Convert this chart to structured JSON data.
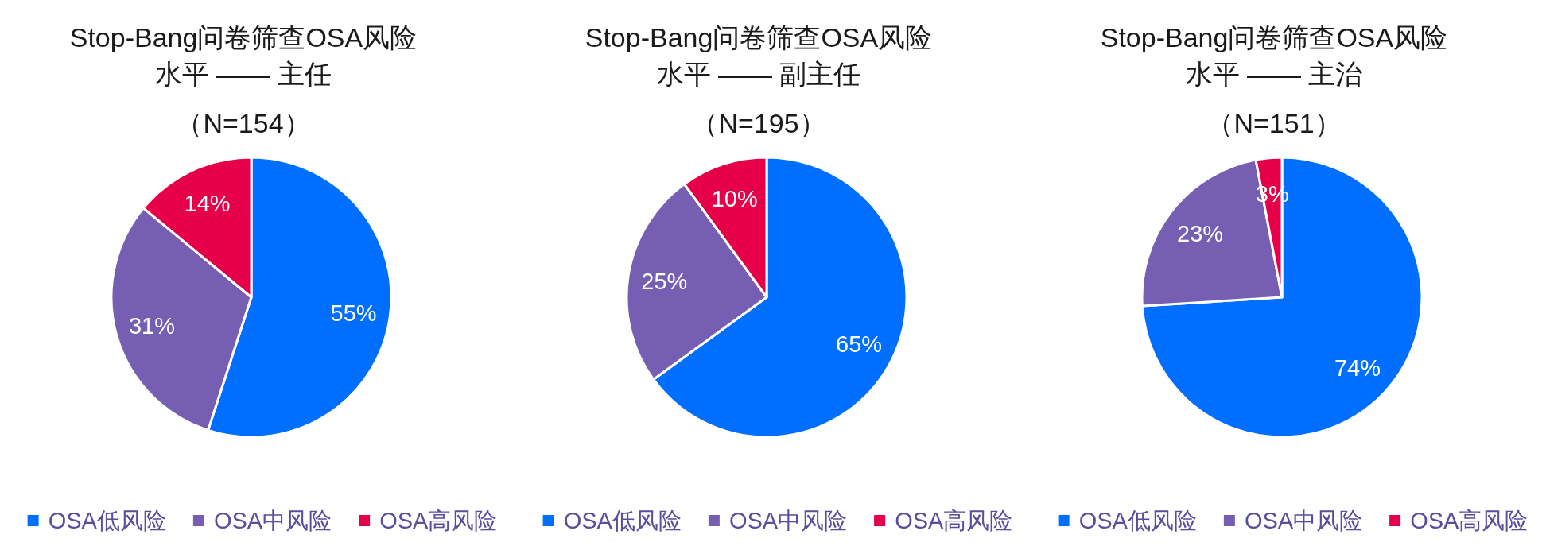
{
  "chart_data": [
    {
      "type": "pie",
      "title": "Stop-Bang问卷筛查OSA风险水平 —— 主任",
      "subtitle": "（N=154）",
      "categories": [
        "OSA低风险",
        "OSA中风险",
        "OSA高风险"
      ],
      "values": [
        55,
        31,
        14
      ],
      "colors": [
        "#006EFF",
        "#765EB2",
        "#E6004A"
      ],
      "value_labels": [
        "55%",
        "31%",
        "14%"
      ],
      "legend": "bottom"
    },
    {
      "type": "pie",
      "title": "Stop-Bang问卷筛查OSA风险水平 —— 副主任",
      "subtitle": "（N=195）",
      "categories": [
        "OSA低风险",
        "OSA中风险",
        "OSA高风险"
      ],
      "values": [
        65,
        25,
        10
      ],
      "colors": [
        "#006EFF",
        "#765EB2",
        "#E6004A"
      ],
      "value_labels": [
        "65%",
        "25%",
        "10%"
      ],
      "legend": "bottom"
    },
    {
      "type": "pie",
      "title": "Stop-Bang问卷筛查OSA风险水平 —— 主治",
      "subtitle": "（N=151）",
      "categories": [
        "OSA低风险",
        "OSA中风险",
        "OSA高风险"
      ],
      "values": [
        74,
        23,
        3
      ],
      "colors": [
        "#006EFF",
        "#765EB2",
        "#E6004A"
      ],
      "value_labels": [
        "74%",
        "23%",
        "3%"
      ],
      "legend": "bottom"
    }
  ]
}
